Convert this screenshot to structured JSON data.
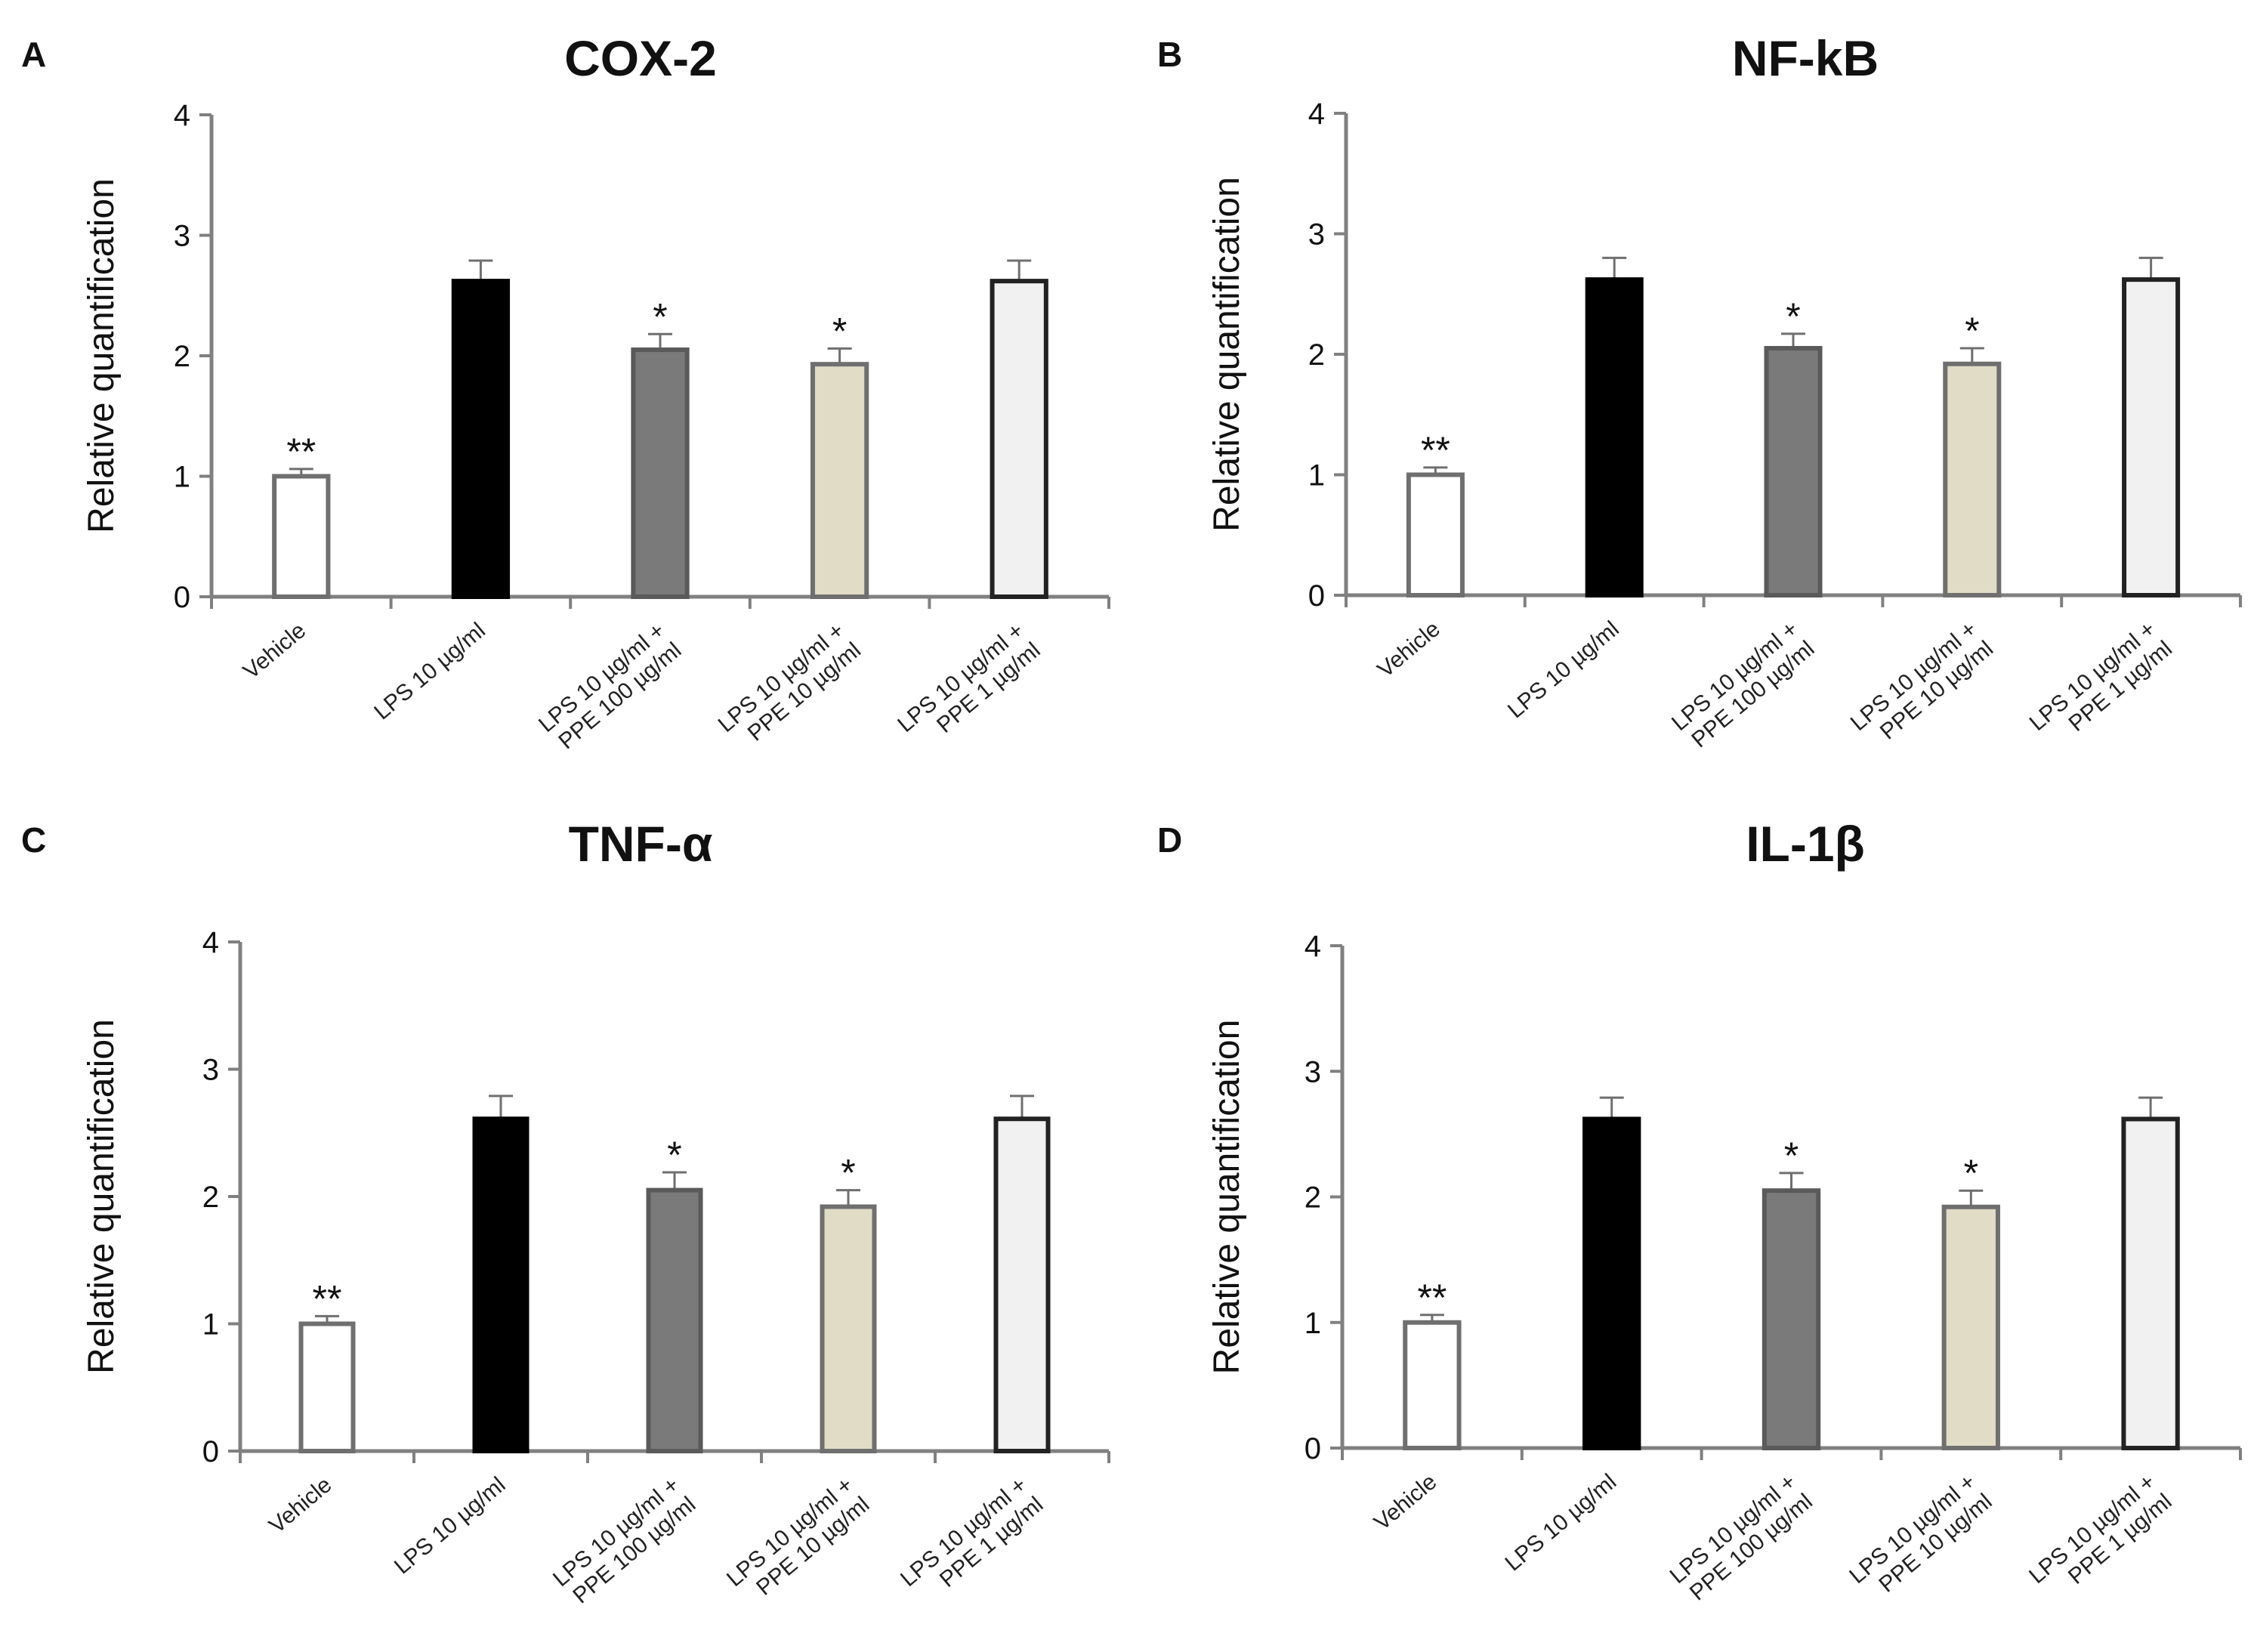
{
  "figure": {
    "categories": [
      [
        "Vehicle"
      ],
      [
        "LPS 10 µg/ml"
      ],
      [
        "LPS 10 µg/ml +",
        "PPE 100 µg/ml"
      ],
      [
        "LPS 10 µg/ml +",
        "PPE 10 µg/ml"
      ],
      [
        "LPS 10 µg/ml +",
        "PPE 1 µg/ml"
      ]
    ],
    "bar_colors": [
      "#ffffff",
      "#000000",
      "#7a7a7a",
      "#e1dcc6",
      "#f1f1f1"
    ],
    "bar_edges": [
      "#6f6f6f",
      "#000000",
      "#5a5a5a",
      "#6f6f6f",
      "#222222"
    ],
    "axis_color": "#808080"
  },
  "chart_data": [
    {
      "panel": "A",
      "type": "bar",
      "title": "COX-2",
      "ylabel": "Relative quantification",
      "xlabel": "",
      "ylim": [
        0,
        4
      ],
      "yticks": [
        0,
        1,
        2,
        3,
        4
      ],
      "values": [
        1.0,
        2.62,
        2.05,
        1.93,
        2.62
      ],
      "errors": [
        0.06,
        0.17,
        0.13,
        0.13,
        0.17
      ],
      "significance": [
        "**",
        "",
        "*",
        "*",
        ""
      ]
    },
    {
      "panel": "B",
      "type": "bar",
      "title": "NF-kB",
      "ylabel": "Relative quantification",
      "xlabel": "",
      "ylim": [
        0,
        4
      ],
      "yticks": [
        0,
        1,
        2,
        3,
        4
      ],
      "values": [
        1.0,
        2.62,
        2.05,
        1.92,
        2.62
      ],
      "errors": [
        0.06,
        0.18,
        0.12,
        0.13,
        0.18
      ],
      "significance": [
        "**",
        "",
        "*",
        "*",
        ""
      ]
    },
    {
      "panel": "C",
      "type": "bar",
      "title": "TNF-α",
      "ylabel": "Relative quantification",
      "xlabel": "",
      "ylim": [
        0,
        4
      ],
      "yticks": [
        0,
        1,
        2,
        3,
        4
      ],
      "values": [
        1.0,
        2.61,
        2.05,
        1.92,
        2.61
      ],
      "errors": [
        0.06,
        0.18,
        0.14,
        0.13,
        0.18
      ],
      "significance": [
        "**",
        "",
        "*",
        "*",
        ""
      ]
    },
    {
      "panel": "D",
      "type": "bar",
      "title": "IL-1β",
      "ylabel": "Relative quantification",
      "xlabel": "",
      "ylim": [
        0,
        4
      ],
      "yticks": [
        0,
        1,
        2,
        3,
        4
      ],
      "values": [
        1.0,
        2.62,
        2.05,
        1.92,
        2.62
      ],
      "errors": [
        0.06,
        0.17,
        0.14,
        0.13,
        0.17
      ],
      "significance": [
        "**",
        "",
        "*",
        "*",
        ""
      ]
    }
  ]
}
